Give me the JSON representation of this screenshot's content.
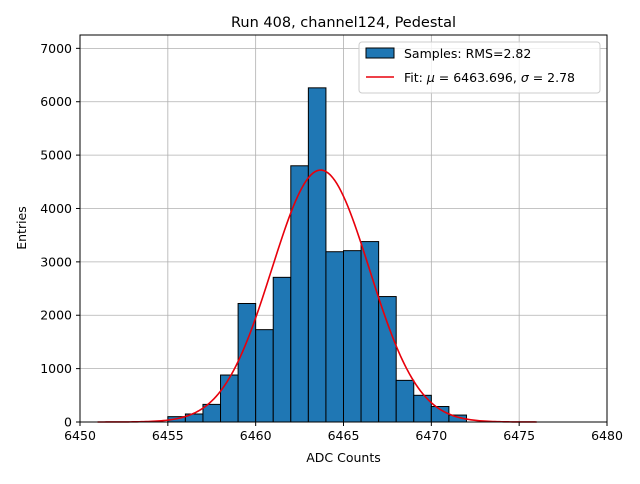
{
  "chart_data": {
    "type": "histogram",
    "title": "Run 408, channel124, Pedestal",
    "xlabel": "ADC Counts",
    "ylabel": "Entries",
    "xlim": [
      6450,
      6480
    ],
    "ylim": [
      0,
      7250
    ],
    "x_ticks": [
      6450,
      6455,
      6460,
      6465,
      6470,
      6475,
      6480
    ],
    "y_ticks": [
      0,
      1000,
      2000,
      3000,
      4000,
      5000,
      6000,
      7000
    ],
    "grid": true,
    "legend_position": "upper-right",
    "bins": [
      {
        "left": 6455,
        "right": 6456,
        "count": 100
      },
      {
        "left": 6456,
        "right": 6457,
        "count": 150
      },
      {
        "left": 6457,
        "right": 6458,
        "count": 330
      },
      {
        "left": 6458,
        "right": 6459,
        "count": 880
      },
      {
        "left": 6459,
        "right": 6460,
        "count": 2220
      },
      {
        "left": 6460,
        "right": 6461,
        "count": 1730
      },
      {
        "left": 6461,
        "right": 6462,
        "count": 2710
      },
      {
        "left": 6462,
        "right": 6463,
        "count": 4800
      },
      {
        "left": 6463,
        "right": 6464,
        "count": 6260
      },
      {
        "left": 6464,
        "right": 6465,
        "count": 3190
      },
      {
        "left": 6465,
        "right": 6466,
        "count": 3210
      },
      {
        "left": 6466,
        "right": 6467,
        "count": 3380
      },
      {
        "left": 6467,
        "right": 6468,
        "count": 2350
      },
      {
        "left": 6468,
        "right": 6469,
        "count": 780
      },
      {
        "left": 6469,
        "right": 6470,
        "count": 500
      },
      {
        "left": 6470,
        "right": 6471,
        "count": 290
      },
      {
        "left": 6471,
        "right": 6472,
        "count": 130
      }
    ],
    "fit": {
      "type": "gaussian",
      "mu": 6463.696,
      "sigma": 2.78,
      "amplitude": 4720,
      "x_range": [
        6451,
        6476
      ]
    },
    "legend": {
      "samples_label": "Samples: RMS=2.82",
      "fit_prefix": "Fit: ",
      "fit_mu_symbol": "μ",
      "fit_mu_text": " = 6463.696, ",
      "fit_sigma_symbol": "σ",
      "fit_sigma_text": " = 2.78"
    },
    "colors": {
      "bar_fill": "#1f77b4",
      "bar_edge": "#000000",
      "fit_line": "#e8000b",
      "grid": "#b0b0b0"
    }
  }
}
